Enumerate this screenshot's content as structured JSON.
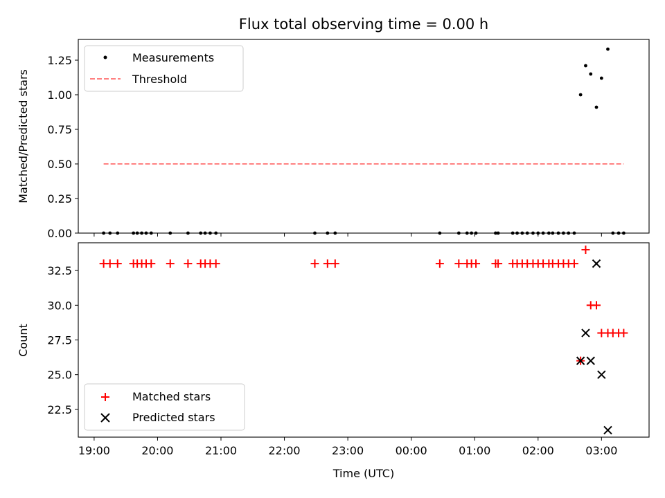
{
  "chart_data": [
    {
      "type": "scatter",
      "panel": "top",
      "title": "Flux total observing time = 0.00 h",
      "xlabel": "",
      "ylabel": "Matched/Predicted stars",
      "xlim": [
        18.75,
        27.75
      ],
      "ylim": [
        0,
        1.4
      ],
      "yticks": [
        0.0,
        0.25,
        0.5,
        0.75,
        1.0,
        1.25
      ],
      "ytick_labels": [
        "0.00",
        "0.25",
        "0.50",
        "0.75",
        "1.00",
        "1.25"
      ],
      "grid": false,
      "legend_position": "upper-left",
      "series": [
        {
          "name": "Measurements",
          "kind": "dot",
          "color": "#000000",
          "x": [
            19.15,
            19.25,
            19.37,
            19.62,
            19.68,
            19.75,
            19.82,
            19.9,
            20.2,
            20.48,
            20.68,
            20.75,
            20.83,
            20.92,
            22.48,
            22.68,
            22.8,
            24.45,
            24.75,
            24.88,
            24.95,
            25.02,
            25.33,
            25.37,
            25.6,
            25.67,
            25.75,
            25.83,
            25.92,
            26.0,
            26.08,
            26.17,
            26.23,
            26.32,
            26.4,
            26.48,
            26.57,
            26.67,
            26.75,
            26.83,
            26.92,
            27.0,
            27.1,
            27.18,
            27.27,
            27.35
          ],
          "y": [
            0,
            0,
            0,
            0,
            0,
            0,
            0,
            0,
            0,
            0,
            0,
            0,
            0,
            0,
            0,
            0,
            0,
            0,
            0,
            0,
            0,
            0,
            0,
            0,
            0,
            0,
            0,
            0,
            0,
            0,
            0,
            0,
            0,
            0,
            0,
            0,
            0,
            1.0,
            1.21,
            1.15,
            0.91,
            1.12,
            1.33,
            0,
            0,
            0
          ]
        },
        {
          "name": "Threshold",
          "kind": "dashed-line",
          "color": "#ff8080",
          "x": [
            19.15,
            27.35
          ],
          "y": [
            0.5,
            0.5
          ]
        }
      ]
    },
    {
      "type": "scatter",
      "panel": "bottom",
      "title": "",
      "xlabel": "Time (UTC)",
      "ylabel": "Count",
      "xlim": [
        18.75,
        27.75
      ],
      "ylim": [
        20.5,
        34.5
      ],
      "xticks": [
        19,
        20,
        21,
        22,
        23,
        24,
        25,
        26,
        27
      ],
      "xtick_labels": [
        "19:00",
        "20:00",
        "21:00",
        "22:00",
        "23:00",
        "00:00",
        "01:00",
        "02:00",
        "03:00"
      ],
      "yticks": [
        22.5,
        25.0,
        27.5,
        30.0,
        32.5
      ],
      "ytick_labels": [
        "22.5",
        "25.0",
        "27.5",
        "30.0",
        "32.5"
      ],
      "grid": false,
      "legend_position": "lower-left",
      "series": [
        {
          "name": "Matched stars",
          "marker": "plus",
          "color": "#ff0000",
          "x": [
            19.15,
            19.25,
            19.37,
            19.62,
            19.68,
            19.75,
            19.82,
            19.9,
            20.2,
            20.48,
            20.68,
            20.75,
            20.83,
            20.92,
            22.48,
            22.68,
            22.8,
            24.45,
            24.75,
            24.88,
            24.95,
            25.02,
            25.33,
            25.37,
            25.6,
            25.67,
            25.75,
            25.83,
            25.92,
            26.0,
            26.08,
            26.17,
            26.23,
            26.32,
            26.4,
            26.48,
            26.57,
            26.67,
            26.75,
            26.83,
            26.92,
            27.0,
            27.1,
            27.18,
            27.27,
            27.35
          ],
          "y": [
            33,
            33,
            33,
            33,
            33,
            33,
            33,
            33,
            33,
            33,
            33,
            33,
            33,
            33,
            33,
            33,
            33,
            33,
            33,
            33,
            33,
            33,
            33,
            33,
            33,
            33,
            33,
            33,
            33,
            33,
            33,
            33,
            33,
            33,
            33,
            33,
            33,
            26,
            34,
            30,
            30,
            28,
            28,
            28,
            28,
            28
          ]
        },
        {
          "name": "Predicted stars",
          "marker": "x",
          "color": "#000000",
          "x": [
            26.67,
            26.75,
            26.83,
            26.92,
            27.0,
            27.1
          ],
          "y": [
            26,
            28,
            26,
            33,
            25,
            21
          ]
        }
      ]
    }
  ]
}
